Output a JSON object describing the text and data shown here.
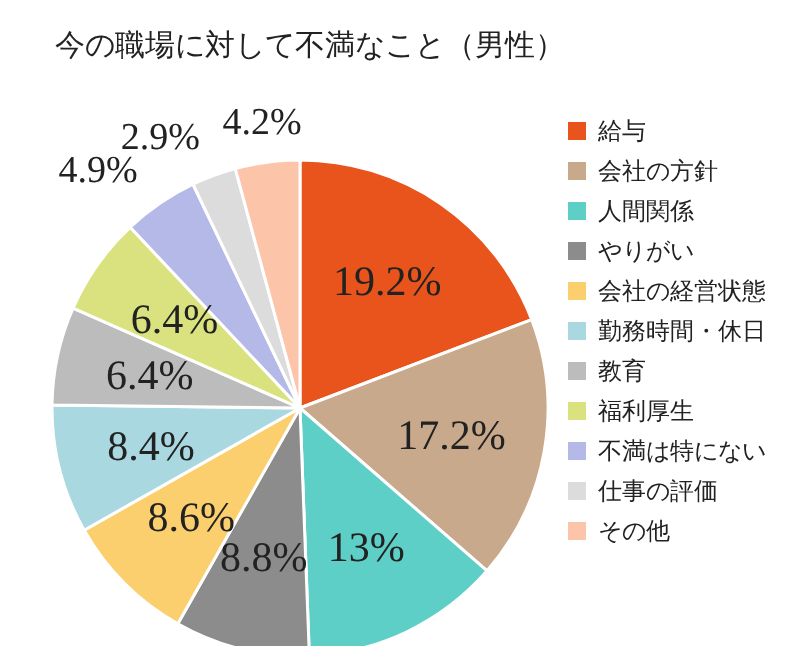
{
  "chart_data": {
    "type": "pie",
    "title": "今の職場に対して不満なこと（男性）",
    "categories": [
      "給与",
      "会社の方針",
      "人間関係",
      "やりがい",
      "会社の経営状態",
      "勤務時間・休日",
      "教育",
      "福利厚生",
      "不満は特にない",
      "仕事の評価",
      "その他"
    ],
    "values": [
      19.2,
      17.2,
      13,
      8.8,
      8.6,
      8.4,
      6.4,
      6.4,
      4.9,
      2.9,
      4.2
    ],
    "value_labels": [
      "19.2%",
      "17.2%",
      "13%",
      "8.8%",
      "8.6%",
      "8.4%",
      "6.4%",
      "6.4%",
      "4.9%",
      "2.9%",
      "4.2%"
    ],
    "colors": [
      "#e8541c",
      "#c8a98b",
      "#5ecfc6",
      "#8c8c8c",
      "#fccf6e",
      "#a9d8e0",
      "#bcbcbc",
      "#d9e27e",
      "#b4b9e8",
      "#dcdcdc",
      "#fcc4a8"
    ],
    "legend": "right"
  }
}
